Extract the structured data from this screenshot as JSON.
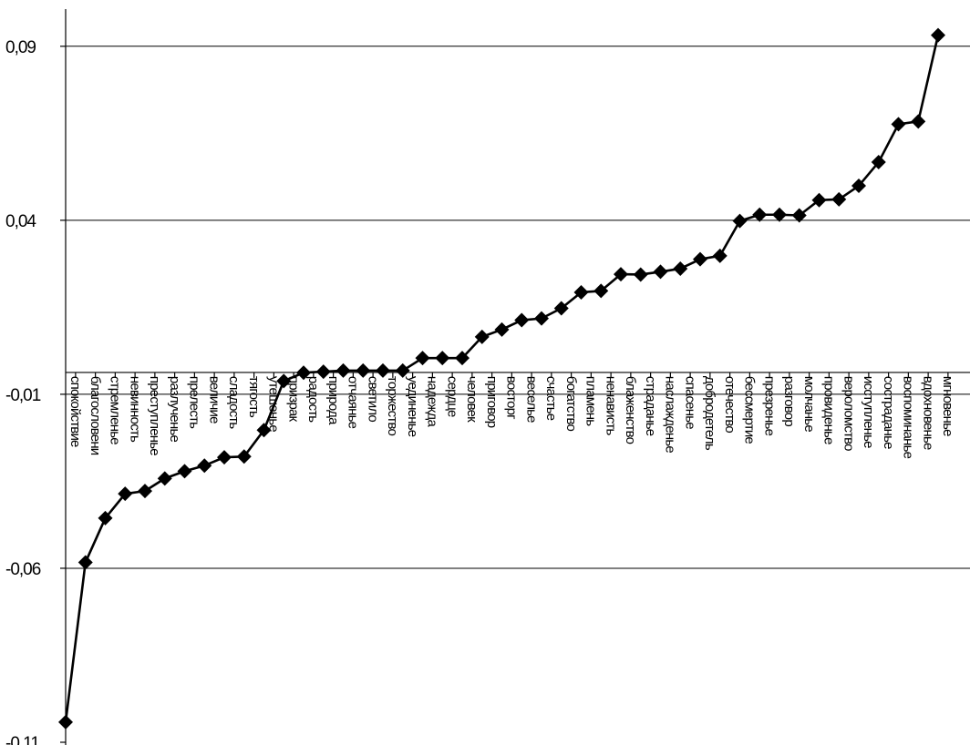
{
  "chart_data": {
    "type": "line",
    "title": "",
    "xlabel": "",
    "ylabel": "",
    "ylim": [
      -0.11,
      0.1
    ],
    "yticks": [
      -0.11,
      -0.06,
      -0.01,
      0.04,
      0.09
    ],
    "ytick_labels": [
      "-0,11",
      "-0,06",
      "-0,01",
      "0,04",
      "0,09"
    ],
    "grid": true,
    "marker": "diamond",
    "line_color": "#000000",
    "categories": [
      "спокойствие",
      "благословени",
      "стремленье",
      "невинность",
      "преступленье",
      "разлученье",
      "прелесть",
      "величие",
      "сладость",
      "тягость",
      "утешенье",
      "призрак",
      "радость",
      "природа",
      "отчаянье",
      "светило",
      "торжество",
      "уединенье",
      "надежда",
      "сердце",
      "человек",
      "приговор",
      "восторг",
      "веселье",
      "счастье",
      "богатство",
      "пламень",
      "ненависть",
      "блаженство",
      "страданье",
      "наслажденье",
      "спасенье",
      "добродетель",
      "отечество",
      "бессмертие",
      "презренье",
      "разговор",
      "молчанье",
      "провиденье",
      "вероломство",
      "исступленье",
      "состраданье",
      "воспоминанье",
      "вдохновенье",
      "мгновенье"
    ],
    "values": [
      -0.1042,
      -0.0583,
      -0.0456,
      -0.0386,
      -0.0378,
      -0.0342,
      -0.0321,
      -0.0305,
      -0.0281,
      -0.0279,
      -0.0203,
      -0.0062,
      -0.0038,
      -0.0035,
      -0.0032,
      -0.0032,
      -0.0032,
      -0.0032,
      0.0004,
      0.0004,
      0.0004,
      0.0065,
      0.0086,
      0.0113,
      0.0118,
      0.0147,
      0.0193,
      0.0197,
      0.0245,
      0.0244,
      0.0252,
      0.0261,
      0.0288,
      0.0298,
      0.0398,
      0.0416,
      0.0416,
      0.0414,
      0.0458,
      0.046,
      0.0499,
      0.0567,
      0.0676,
      0.0684,
      0.0932
    ]
  }
}
